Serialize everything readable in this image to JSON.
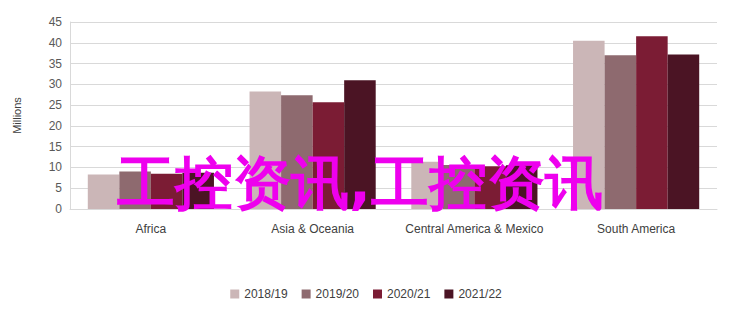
{
  "chart_data": {
    "type": "bar",
    "y_label": "Millions",
    "categories": [
      "Africa",
      "Asia & Oceania",
      "Central America & Mexico",
      "South America"
    ],
    "series": [
      {
        "name": "2018/19",
        "color": "#cbb6b7",
        "values": [
          8.3,
          28.3,
          11.4,
          40.5
        ]
      },
      {
        "name": "2019/20",
        "color": "#8e6a6f",
        "values": [
          9.0,
          27.4,
          10.6,
          37.0
        ]
      },
      {
        "name": "2020/21",
        "color": "#7b1c34",
        "values": [
          8.5,
          25.7,
          10.3,
          41.6
        ]
      },
      {
        "name": "2021/22",
        "color": "#4b1424",
        "values": [
          8.7,
          31.0,
          10.5,
          37.2
        ]
      }
    ],
    "ylim": [
      0,
      45
    ],
    "yticks": [
      0,
      5,
      10,
      15,
      20,
      25,
      30,
      35,
      40,
      45
    ],
    "grid": true,
    "legend": "bottom",
    "annotation": "工控资讯,工控资讯"
  }
}
